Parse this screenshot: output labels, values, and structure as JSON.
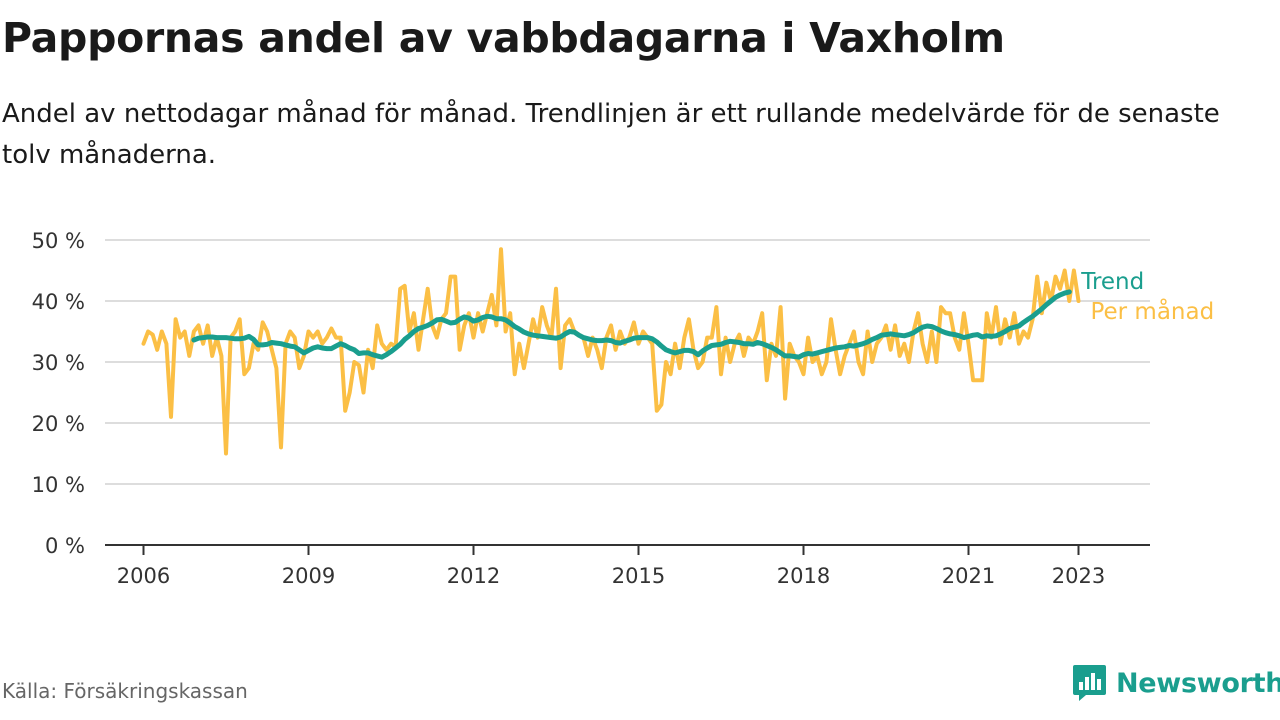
{
  "header": {
    "title": "Pappornas andel av vabbdagarna i Vaxholm",
    "subtitle": "Andel av nettodagar månad för månad. Trendlinjen är ett rullande medelvärde för de senaste tolv månaderna."
  },
  "footer": {
    "source": "Källa: Försäkringskassan",
    "brand_name": "Newsworthy"
  },
  "colors": {
    "monthly": "#fbbf45",
    "trend": "#1a9e8e",
    "grid": "#dddddd",
    "axis": "#333333",
    "brand": "#1a9e8e"
  },
  "chart_data": {
    "type": "line",
    "x_unit": "year (decimal, month-start)",
    "xlim": [
      2005.3,
      2024.3
    ],
    "xticks": [
      2006,
      2009,
      2012,
      2015,
      2018,
      2021,
      2023
    ],
    "ylim": [
      0,
      50
    ],
    "yticks": [
      {
        "value": 0,
        "label": "0 %"
      },
      {
        "value": 10,
        "label": "10 %"
      },
      {
        "value": 20,
        "label": "20 %"
      },
      {
        "value": 30,
        "label": "30 %"
      },
      {
        "value": 40,
        "label": "40 %"
      },
      {
        "value": 50,
        "label": "50 %"
      }
    ],
    "grid": "horizontal",
    "x_start": 2006.0,
    "x_step": 0.08333,
    "series": [
      {
        "name": "Per månad",
        "color": "#fbbf45",
        "values": [
          33.0,
          35.0,
          34.5,
          32.0,
          35.0,
          33.0,
          21.0,
          37.0,
          34.0,
          35.0,
          31.0,
          35.0,
          36.0,
          33.0,
          36.0,
          31.0,
          34.0,
          31.0,
          15.0,
          34.0,
          35.0,
          37.0,
          28.0,
          29.0,
          33.0,
          32.0,
          36.5,
          35.0,
          32.0,
          29.0,
          16.0,
          33.0,
          35.0,
          34.0,
          29.0,
          31.0,
          35.0,
          34.0,
          35.0,
          33.0,
          34.0,
          35.5,
          34.0,
          34.0,
          22.0,
          25.0,
          30.0,
          29.5,
          25.0,
          32.0,
          29.0,
          36.0,
          33.0,
          32.0,
          33.0,
          32.5,
          42.0,
          42.5,
          35.0,
          38.0,
          32.0,
          37.0,
          42.0,
          36.0,
          34.0,
          37.0,
          38.0,
          44.0,
          44.0,
          32.0,
          36.0,
          38.0,
          34.0,
          38.0,
          35.0,
          38.0,
          41.0,
          36.0,
          48.5,
          35.0,
          38.0,
          28.0,
          33.0,
          29.0,
          33.0,
          37.0,
          34.0,
          39.0,
          36.0,
          34.0,
          42.0,
          29.0,
          36.0,
          37.0,
          35.0,
          34.5,
          34.0,
          31.0,
          34.0,
          32.0,
          29.0,
          34.0,
          36.0,
          32.0,
          35.0,
          33.0,
          34.0,
          36.5,
          33.0,
          35.0,
          34.0,
          33.0,
          22.0,
          23.0,
          30.0,
          28.0,
          33.0,
          29.0,
          34.0,
          37.0,
          32.0,
          29.0,
          30.0,
          34.0,
          34.0,
          39.0,
          28.0,
          34.0,
          30.0,
          33.0,
          34.5,
          31.0,
          34.0,
          33.0,
          35.0,
          38.0,
          27.0,
          33.0,
          31.0,
          39.0,
          24.0,
          33.0,
          31.0,
          30.0,
          28.0,
          34.0,
          30.0,
          31.0,
          28.0,
          30.0,
          37.0,
          32.0,
          28.0,
          31.0,
          33.0,
          35.0,
          30.0,
          28.0,
          35.0,
          30.0,
          33.0,
          34.0,
          36.0,
          32.0,
          36.0,
          31.0,
          33.0,
          30.0,
          35.0,
          38.0,
          33.0,
          30.0,
          35.0,
          30.0,
          39.0,
          38.0,
          38.0,
          34.0,
          32.0,
          38.0,
          33.0,
          27.0,
          27.0,
          27.0,
          38.0,
          34.0,
          39.0,
          33.0,
          37.0,
          34.0,
          38.0,
          33.0,
          35.0,
          34.0,
          37.0,
          44.0,
          38.0,
          43.0,
          40.0,
          44.0,
          42.0,
          45.0,
          40.0,
          45.0,
          40.0
        ]
      },
      {
        "name": "Trend",
        "color": "#1a9e8e",
        "start_index": 11,
        "values": [
          33.6,
          33.9,
          34.0,
          34.1,
          34.1,
          34.0,
          34.0,
          34.0,
          33.9,
          33.8,
          33.8,
          33.9,
          34.2,
          33.7,
          32.8,
          32.8,
          32.9,
          33.2,
          33.1,
          33.0,
          32.8,
          32.6,
          32.5,
          32.0,
          31.5,
          31.9,
          32.3,
          32.5,
          32.3,
          32.2,
          32.2,
          32.6,
          33.0,
          32.7,
          32.3,
          32.0,
          31.4,
          31.5,
          31.5,
          31.2,
          31.0,
          30.8,
          31.2,
          31.7,
          32.3,
          32.9,
          33.7,
          34.3,
          35.0,
          35.5,
          35.7,
          36.0,
          36.4,
          36.9,
          37.0,
          36.7,
          36.4,
          36.5,
          37.0,
          37.4,
          37.2,
          36.7,
          36.9,
          37.3,
          37.5,
          37.4,
          37.1,
          37.1,
          36.9,
          36.4,
          35.8,
          35.4,
          34.9,
          34.6,
          34.4,
          34.3,
          34.2,
          34.1,
          34.0,
          33.9,
          34.1,
          34.6,
          35.0,
          34.9,
          34.4,
          34.0,
          33.8,
          33.6,
          33.5,
          33.5,
          33.6,
          33.5,
          33.2,
          33.1,
          33.4,
          33.6,
          33.9,
          34.0,
          34.0,
          34.0,
          33.8,
          33.3,
          32.6,
          32.0,
          31.7,
          31.5,
          31.7,
          31.9,
          31.9,
          31.7,
          31.2,
          31.8,
          32.3,
          32.7,
          32.8,
          32.9,
          33.2,
          33.4,
          33.3,
          33.2,
          33.0,
          33.0,
          32.9,
          33.2,
          33.0,
          32.7,
          32.4,
          32.0,
          31.5,
          31.0,
          31.0,
          30.9,
          30.8,
          31.2,
          31.4,
          31.3,
          31.5,
          31.7,
          31.9,
          32.1,
          32.3,
          32.4,
          32.5,
          32.7,
          32.6,
          32.8,
          33.0,
          33.3,
          33.7,
          34.0,
          34.4,
          34.5,
          34.6,
          34.5,
          34.4,
          34.3,
          34.5,
          34.8,
          35.3,
          35.7,
          35.9,
          35.8,
          35.5,
          35.1,
          34.8,
          34.6,
          34.5,
          34.3,
          34.0,
          34.2,
          34.4,
          34.5,
          34.1,
          34.3,
          34.2,
          34.3,
          34.6,
          35.0,
          35.5,
          35.7,
          35.9,
          36.5,
          37.0,
          37.5,
          38.1,
          38.7,
          39.4,
          40.0,
          40.6,
          41.0,
          41.3,
          41.5
        ]
      }
    ],
    "legend": [
      {
        "label": "Trend",
        "series": "Trend"
      },
      {
        "label": "Per månad",
        "series": "Per månad"
      }
    ]
  }
}
